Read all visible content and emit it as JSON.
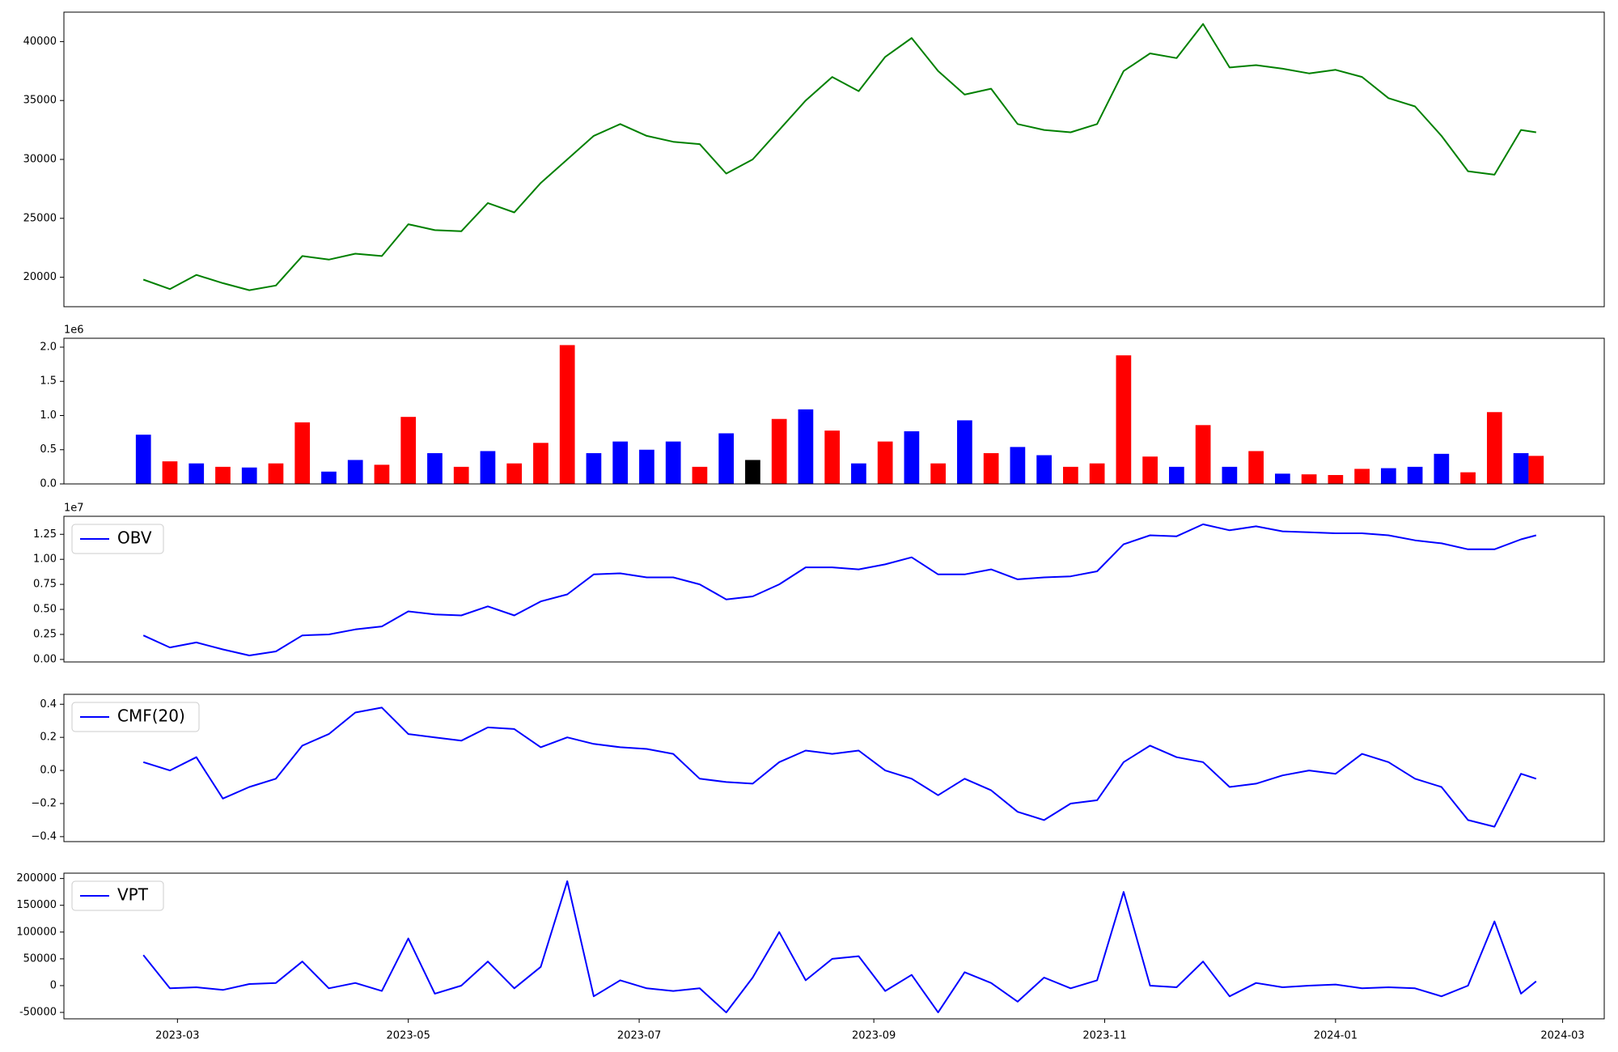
{
  "chart_data": [
    {
      "type": "line",
      "x": [
        "2023-02-20",
        "2023-02-27",
        "2023-03-06",
        "2023-03-13",
        "2023-03-20",
        "2023-03-27",
        "2023-04-03",
        "2023-04-10",
        "2023-04-17",
        "2023-04-24",
        "2023-05-01",
        "2023-05-08",
        "2023-05-15",
        "2023-05-22",
        "2023-05-29",
        "2023-06-05",
        "2023-06-12",
        "2023-06-19",
        "2023-06-26",
        "2023-07-03",
        "2023-07-10",
        "2023-07-17",
        "2023-07-24",
        "2023-07-31",
        "2023-08-07",
        "2023-08-14",
        "2023-08-21",
        "2023-08-28",
        "2023-09-04",
        "2023-09-11",
        "2023-09-18",
        "2023-09-25",
        "2023-10-02",
        "2023-10-09",
        "2023-10-16",
        "2023-10-23",
        "2023-10-30",
        "2023-11-06",
        "2023-11-13",
        "2023-11-20",
        "2023-11-27",
        "2023-12-04",
        "2023-12-11",
        "2023-12-18",
        "2023-12-25",
        "2024-01-01",
        "2024-01-08",
        "2024-01-15",
        "2024-01-22",
        "2024-01-29",
        "2024-02-05",
        "2024-02-12",
        "2024-02-19",
        "2024-02-23"
      ],
      "series": [
        {
          "color": "green",
          "values": [
            19800,
            19000,
            20200,
            19500,
            18900,
            19300,
            21800,
            21500,
            22000,
            21800,
            24500,
            24000,
            23900,
            26300,
            25500,
            28000,
            30000,
            32000,
            33000,
            32000,
            31500,
            31300,
            28800,
            30000,
            32500,
            35000,
            37000,
            35800,
            38700,
            40300,
            37500,
            35500,
            36000,
            33000,
            32500,
            32300,
            33000,
            37500,
            39000,
            38600,
            41500,
            37800,
            38000,
            37700,
            37300,
            37600,
            37000,
            35200,
            34500,
            32000,
            29000,
            28700,
            32500,
            32300
          ]
        }
      ],
      "xlim": [
        "2023-01-30",
        "2024-03-12"
      ],
      "ylim": [
        17500,
        42500
      ],
      "yticks": [
        20000,
        25000,
        30000,
        35000,
        40000
      ]
    },
    {
      "type": "bar",
      "x": [
        "2023-02-20",
        "2023-02-27",
        "2023-03-06",
        "2023-03-13",
        "2023-03-20",
        "2023-03-27",
        "2023-04-03",
        "2023-04-10",
        "2023-04-17",
        "2023-04-24",
        "2023-05-01",
        "2023-05-08",
        "2023-05-15",
        "2023-05-22",
        "2023-05-29",
        "2023-06-05",
        "2023-06-12",
        "2023-06-19",
        "2023-06-26",
        "2023-07-03",
        "2023-07-10",
        "2023-07-17",
        "2023-07-24",
        "2023-07-31",
        "2023-08-07",
        "2023-08-14",
        "2023-08-21",
        "2023-08-28",
        "2023-09-04",
        "2023-09-11",
        "2023-09-18",
        "2023-09-25",
        "2023-10-02",
        "2023-10-09",
        "2023-10-16",
        "2023-10-23",
        "2023-10-30",
        "2023-11-06",
        "2023-11-13",
        "2023-11-20",
        "2023-11-27",
        "2023-12-04",
        "2023-12-11",
        "2023-12-18",
        "2023-12-25",
        "2024-01-01",
        "2024-01-08",
        "2024-01-15",
        "2024-01-22",
        "2024-01-29",
        "2024-02-05",
        "2024-02-12",
        "2024-02-19",
        "2024-02-23"
      ],
      "values": [
        720000,
        330000,
        300000,
        250000,
        240000,
        300000,
        900000,
        180000,
        350000,
        280000,
        980000,
        450000,
        250000,
        480000,
        300000,
        600000,
        2030000,
        450000,
        620000,
        500000,
        620000,
        250000,
        740000,
        350000,
        950000,
        1090000,
        780000,
        300000,
        620000,
        770000,
        300000,
        930000,
        450000,
        540000,
        420000,
        250000,
        300000,
        1880000,
        400000,
        250000,
        860000,
        250000,
        480000,
        150000,
        140000,
        130000,
        220000,
        230000,
        250000,
        440000,
        170000,
        1050000,
        450000,
        410000
      ],
      "colors": [
        "blue",
        "red",
        "blue",
        "red",
        "blue",
        "red",
        "red",
        "blue",
        "blue",
        "red",
        "red",
        "blue",
        "red",
        "blue",
        "red",
        "red",
        "red",
        "blue",
        "blue",
        "blue",
        "blue",
        "red",
        "blue",
        "black",
        "red",
        "blue",
        "red",
        "blue",
        "red",
        "blue",
        "red",
        "blue",
        "red",
        "blue",
        "blue",
        "red",
        "red",
        "red",
        "red",
        "blue",
        "red",
        "blue",
        "red",
        "blue",
        "red",
        "red",
        "red",
        "blue",
        "blue",
        "blue",
        "red",
        "red",
        "blue",
        "red"
      ],
      "xlim": [
        "2023-01-30",
        "2024-03-12"
      ],
      "ylim": [
        0,
        2130000
      ],
      "y_offset_label": "1e6",
      "yticks": [
        {
          "value": 0,
          "label": "0.0"
        },
        {
          "value": 500000,
          "label": "0.5"
        },
        {
          "value": 1000000,
          "label": "1.0"
        },
        {
          "value": 1500000,
          "label": "1.5"
        },
        {
          "value": 2000000,
          "label": "2.0"
        }
      ]
    },
    {
      "type": "line",
      "x": [
        "2023-02-20",
        "2023-02-27",
        "2023-03-06",
        "2023-03-13",
        "2023-03-20",
        "2023-03-27",
        "2023-04-03",
        "2023-04-10",
        "2023-04-17",
        "2023-04-24",
        "2023-05-01",
        "2023-05-08",
        "2023-05-15",
        "2023-05-22",
        "2023-05-29",
        "2023-06-05",
        "2023-06-12",
        "2023-06-19",
        "2023-06-26",
        "2023-07-03",
        "2023-07-10",
        "2023-07-17",
        "2023-07-24",
        "2023-07-31",
        "2023-08-07",
        "2023-08-14",
        "2023-08-21",
        "2023-08-28",
        "2023-09-04",
        "2023-09-11",
        "2023-09-18",
        "2023-09-25",
        "2023-10-02",
        "2023-10-09",
        "2023-10-16",
        "2023-10-23",
        "2023-10-30",
        "2023-11-06",
        "2023-11-13",
        "2023-11-20",
        "2023-11-27",
        "2023-12-04",
        "2023-12-11",
        "2023-12-18",
        "2023-12-25",
        "2024-01-01",
        "2024-01-08",
        "2024-01-15",
        "2024-01-22",
        "2024-01-29",
        "2024-02-05",
        "2024-02-12",
        "2024-02-19",
        "2024-02-23"
      ],
      "series": [
        {
          "name": "OBV",
          "color": "blue",
          "values": [
            2400000,
            1200000,
            1700000,
            1000000,
            400000,
            800000,
            2400000,
            2500000,
            3000000,
            3300000,
            4800000,
            4500000,
            4400000,
            5300000,
            4400000,
            5800000,
            6500000,
            8500000,
            8600000,
            8200000,
            8200000,
            7500000,
            6000000,
            6300000,
            7500000,
            9200000,
            9200000,
            9000000,
            9500000,
            10200000,
            8500000,
            8500000,
            9000000,
            8000000,
            8200000,
            8300000,
            8800000,
            11500000,
            12400000,
            12300000,
            13500000,
            12900000,
            13300000,
            12800000,
            12700000,
            12600000,
            12600000,
            12400000,
            11900000,
            11600000,
            11000000,
            11000000,
            12000000,
            12400000
          ]
        }
      ],
      "xlim": [
        "2023-01-30",
        "2024-03-12"
      ],
      "ylim": [
        -250000,
        14300000
      ],
      "y_offset_label": "1e7",
      "legend": "upper left",
      "yticks": [
        {
          "value": 0,
          "label": "0.00"
        },
        {
          "value": 2500000,
          "label": "0.25"
        },
        {
          "value": 5000000,
          "label": "0.50"
        },
        {
          "value": 7500000,
          "label": "0.75"
        },
        {
          "value": 10000000,
          "label": "1.00"
        },
        {
          "value": 12500000,
          "label": "1.25"
        }
      ]
    },
    {
      "type": "line",
      "x": [
        "2023-02-20",
        "2023-02-27",
        "2023-03-06",
        "2023-03-13",
        "2023-03-20",
        "2023-03-27",
        "2023-04-03",
        "2023-04-10",
        "2023-04-17",
        "2023-04-24",
        "2023-05-01",
        "2023-05-08",
        "2023-05-15",
        "2023-05-22",
        "2023-05-29",
        "2023-06-05",
        "2023-06-12",
        "2023-06-19",
        "2023-06-26",
        "2023-07-03",
        "2023-07-10",
        "2023-07-17",
        "2023-07-24",
        "2023-07-31",
        "2023-08-07",
        "2023-08-14",
        "2023-08-21",
        "2023-08-28",
        "2023-09-04",
        "2023-09-11",
        "2023-09-18",
        "2023-09-25",
        "2023-10-02",
        "2023-10-09",
        "2023-10-16",
        "2023-10-23",
        "2023-10-30",
        "2023-11-06",
        "2023-11-13",
        "2023-11-20",
        "2023-11-27",
        "2023-12-04",
        "2023-12-11",
        "2023-12-18",
        "2023-12-25",
        "2024-01-01",
        "2024-01-08",
        "2024-01-15",
        "2024-01-22",
        "2024-01-29",
        "2024-02-05",
        "2024-02-12",
        "2024-02-19",
        "2024-02-23"
      ],
      "series": [
        {
          "name": "CMF(20)",
          "color": "blue",
          "values": [
            0.05,
            0.0,
            0.08,
            -0.17,
            -0.1,
            -0.05,
            0.15,
            0.22,
            0.35,
            0.38,
            0.22,
            0.2,
            0.18,
            0.26,
            0.25,
            0.14,
            0.2,
            0.16,
            0.14,
            0.13,
            0.1,
            -0.05,
            -0.07,
            -0.08,
            0.05,
            0.12,
            0.1,
            0.12,
            0.0,
            -0.05,
            -0.15,
            -0.05,
            -0.12,
            -0.25,
            -0.3,
            -0.2,
            -0.18,
            0.05,
            0.15,
            0.08,
            0.05,
            -0.1,
            -0.08,
            -0.03,
            0.0,
            -0.02,
            0.1,
            0.05,
            -0.05,
            -0.1,
            -0.3,
            -0.34,
            -0.02,
            -0.05
          ]
        }
      ],
      "xlim": [
        "2023-01-30",
        "2024-03-12"
      ],
      "ylim": [
        -0.43,
        0.46
      ],
      "legend": "upper left",
      "yticks": [
        {
          "value": -0.4,
          "label": "−0.4"
        },
        {
          "value": -0.2,
          "label": "−0.2"
        },
        {
          "value": 0,
          "label": "0.0"
        },
        {
          "value": 0.2,
          "label": "0.2"
        },
        {
          "value": 0.4,
          "label": "0.4"
        }
      ]
    },
    {
      "type": "line",
      "x": [
        "2023-02-20",
        "2023-02-27",
        "2023-03-06",
        "2023-03-13",
        "2023-03-20",
        "2023-03-27",
        "2023-04-03",
        "2023-04-10",
        "2023-04-17",
        "2023-04-24",
        "2023-05-01",
        "2023-05-08",
        "2023-05-15",
        "2023-05-22",
        "2023-05-29",
        "2023-06-05",
        "2023-06-12",
        "2023-06-19",
        "2023-06-26",
        "2023-07-03",
        "2023-07-10",
        "2023-07-17",
        "2023-07-24",
        "2023-07-31",
        "2023-08-07",
        "2023-08-14",
        "2023-08-21",
        "2023-08-28",
        "2023-09-04",
        "2023-09-11",
        "2023-09-18",
        "2023-09-25",
        "2023-10-02",
        "2023-10-09",
        "2023-10-16",
        "2023-10-23",
        "2023-10-30",
        "2023-11-06",
        "2023-11-13",
        "2023-11-20",
        "2023-11-27",
        "2023-12-04",
        "2023-12-11",
        "2023-12-18",
        "2023-12-25",
        "2024-01-01",
        "2024-01-08",
        "2024-01-15",
        "2024-01-22",
        "2024-01-29",
        "2024-02-05",
        "2024-02-12",
        "2024-02-19",
        "2024-02-23"
      ],
      "series": [
        {
          "name": "VPT",
          "color": "blue",
          "values": [
            57000,
            -5000,
            -3000,
            -8000,
            3000,
            5000,
            45000,
            -5000,
            5000,
            -10000,
            88000,
            -15000,
            0,
            45000,
            -5000,
            35000,
            195000,
            -20000,
            10000,
            -5000,
            -10000,
            -5000,
            -50000,
            15000,
            100000,
            10000,
            50000,
            55000,
            -10000,
            20000,
            -50000,
            25000,
            5000,
            -30000,
            15000,
            -5000,
            10000,
            175000,
            0,
            -3000,
            45000,
            -20000,
            5000,
            -3000,
            0,
            2000,
            -5000,
            -3000,
            -5000,
            -20000,
            0,
            120000,
            -15000,
            8000
          ]
        }
      ],
      "xlim": [
        "2023-01-30",
        "2024-03-12"
      ],
      "ylim": [
        -62000,
        210000
      ],
      "legend": "upper left",
      "yticks": [
        -50000,
        0,
        50000,
        100000,
        150000,
        200000
      ],
      "xticks": [
        {
          "value": "2023-03-01",
          "label": "2023-03"
        },
        {
          "value": "2023-05-01",
          "label": "2023-05"
        },
        {
          "value": "2023-07-01",
          "label": "2023-07"
        },
        {
          "value": "2023-09-01",
          "label": "2023-09"
        },
        {
          "value": "2023-11-01",
          "label": "2023-11"
        },
        {
          "value": "2024-01-01",
          "label": "2024-01"
        },
        {
          "value": "2024-03-01",
          "label": "2024-03"
        }
      ]
    }
  ]
}
